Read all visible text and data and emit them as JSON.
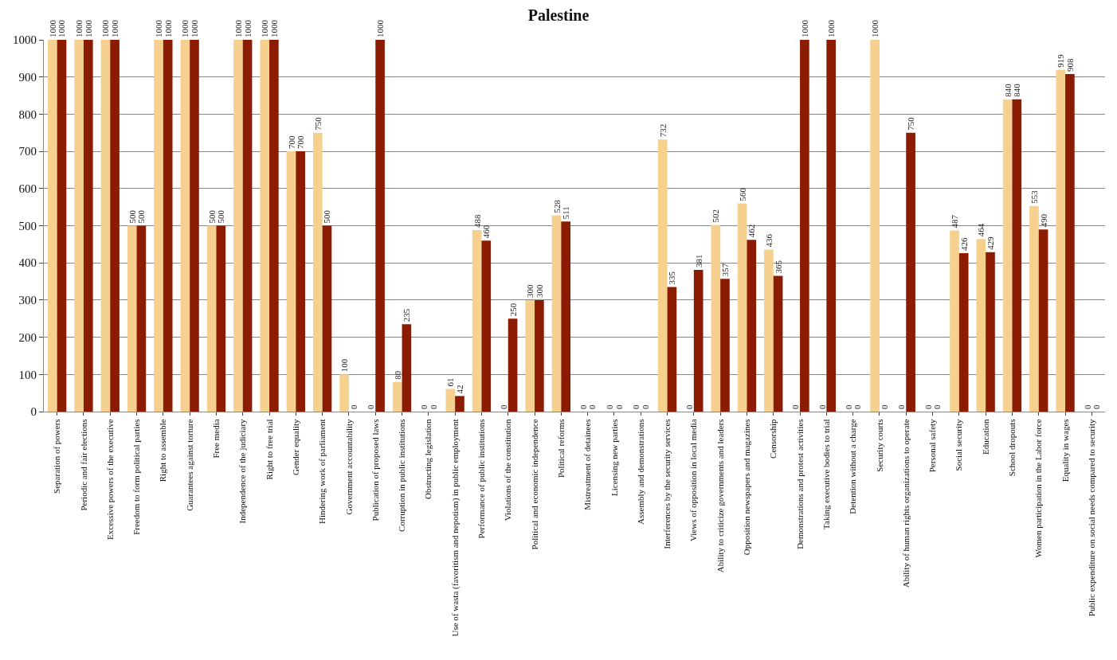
{
  "chart_data": {
    "type": "bar",
    "title": "Palestine",
    "categories": [
      "Separation of powers",
      "Periodic and fair elections",
      "Excessive powers of the executive",
      "Freedom to form political parties",
      "Right to assemble",
      "Guarantees against torture",
      "Free media",
      "Independence of the judiciary",
      "Right to free trial",
      "Gender equality",
      "Hindering work of parliament",
      "Government accountability",
      "Publication of proposed laws",
      "Corruption in public institutions",
      "Obstructing legislation",
      "Use of wasta (favoritism and nepotism) in public employment",
      "Performance of public institutions",
      "Violations of the constitution",
      "Political and economic independence",
      "Political reforms",
      "Mistreatment of detainees",
      "Licensing new parties",
      "Assembly and demonstrations",
      "Interferences by the security services",
      "Views of opposition in local media",
      "Ability to criticize governments and leaders",
      "Opposition newspapers and magazines",
      "Censorship",
      "Demonstrations and protest activities",
      "Taking executive bodies to trial",
      "Detention without a charge",
      "Security courts",
      "Ability of human rights organizations to operate",
      "Personal safety",
      "Social security",
      "Education",
      "School dropouts",
      "Women participation in the Labor force",
      "Equality in wages",
      "Public expenditure on social needs compared to security"
    ],
    "series": [
      {
        "color": "#f5d08f",
        "values": [
          1000,
          1000,
          1000,
          500,
          1000,
          1000,
          500,
          1000,
          1000,
          700,
          750,
          100,
          0,
          80,
          0,
          61,
          488,
          0,
          300,
          528,
          0,
          0,
          0,
          732,
          0,
          502,
          560,
          436,
          0,
          0,
          0,
          1000,
          0,
          0,
          487,
          464,
          840,
          553,
          919,
          0
        ]
      },
      {
        "color": "#8b1c02",
        "values": [
          1000,
          1000,
          1000,
          500,
          1000,
          1000,
          500,
          1000,
          1000,
          700,
          500,
          0,
          1000,
          235,
          0,
          42,
          460,
          250,
          300,
          511,
          0,
          0,
          0,
          335,
          381,
          357,
          462,
          365,
          1000,
          1000,
          0,
          0,
          750,
          0,
          426,
          429,
          840,
          490,
          908,
          0
        ]
      }
    ],
    "ylim": [
      0,
      1000
    ],
    "yticks": [
      0,
      100,
      200,
      300,
      400,
      500,
      600,
      700,
      800,
      900,
      1000
    ],
    "grid": "y",
    "data_labels": true
  }
}
